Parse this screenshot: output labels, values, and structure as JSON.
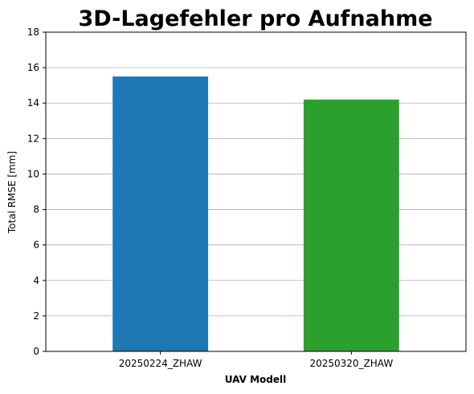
{
  "chart_data": {
    "type": "bar",
    "title": "3D-Lagefehler pro Aufnahme",
    "xlabel": "UAV Modell",
    "ylabel": "Total RMSE [mm]",
    "categories": [
      "20250224_ZHAW",
      "20250320_ZHAW"
    ],
    "values": [
      15.5,
      14.2
    ],
    "colors": [
      "#1f77b4",
      "#2ca02c"
    ],
    "ylim": [
      0,
      18
    ],
    "yticks": [
      0,
      2,
      4,
      6,
      8,
      10,
      12,
      14,
      16,
      18
    ],
    "grid": "y",
    "legend": "none"
  }
}
